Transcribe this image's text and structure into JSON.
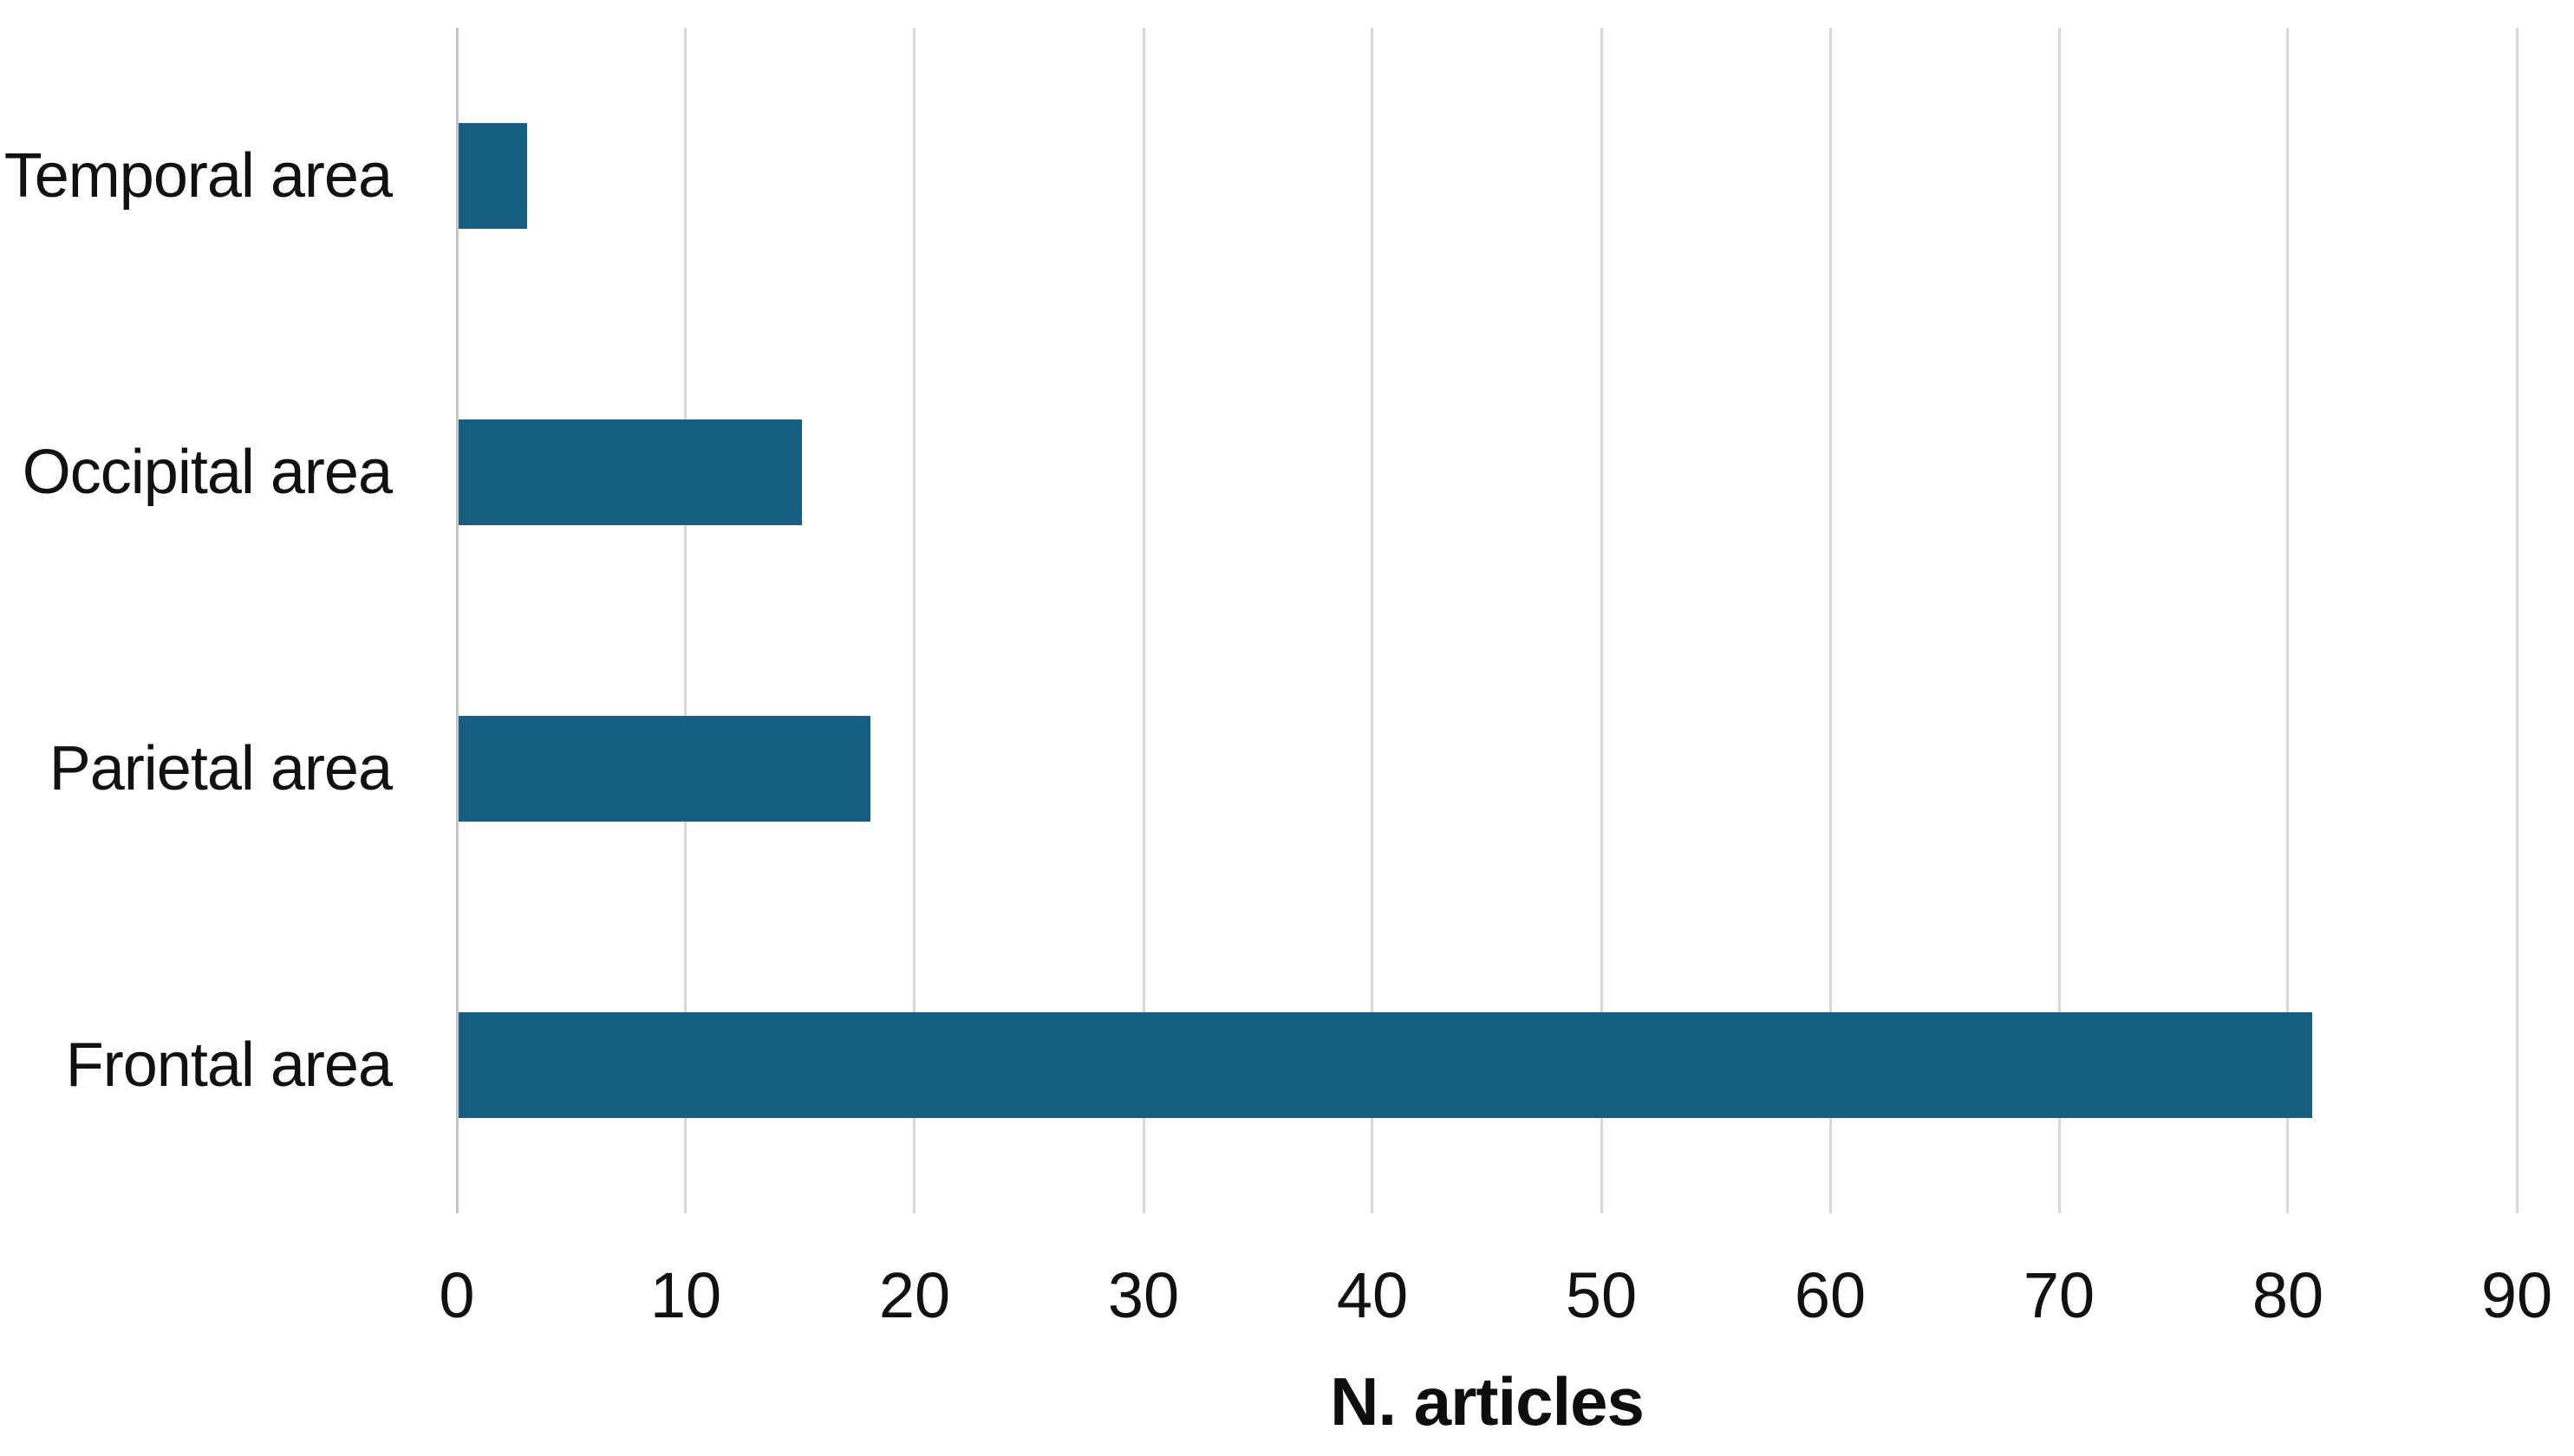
{
  "chart_data": {
    "type": "bar",
    "orientation": "horizontal",
    "categories": [
      "Temporal area",
      "Occipital area",
      "Parietal area",
      "Frontal area"
    ],
    "values": [
      3,
      15,
      18,
      81
    ],
    "title": "",
    "xlabel": "N. articles",
    "ylabel": "",
    "xlim": [
      0,
      90
    ],
    "xticks": [
      0,
      10,
      20,
      30,
      40,
      50,
      60,
      70,
      80,
      90
    ],
    "grid": true,
    "legend": false,
    "colors": {
      "bar": "#175F82",
      "gridline": "#D9D9D9",
      "zero_axis_line": "#C6C6C6",
      "text": "#111111",
      "background": "#FFFFFF"
    }
  }
}
